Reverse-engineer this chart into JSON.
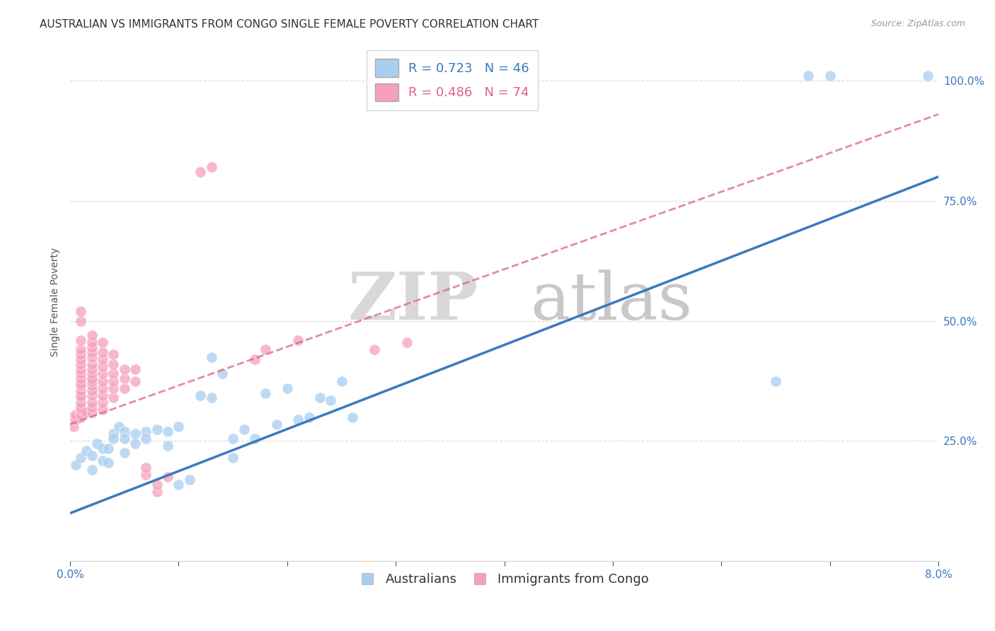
{
  "title": "AUSTRALIAN VS IMMIGRANTS FROM CONGO SINGLE FEMALE POVERTY CORRELATION CHART",
  "source": "Source: ZipAtlas.com",
  "ylabel": "Single Female Poverty",
  "ytick_vals": [
    0.25,
    0.5,
    0.75,
    1.0
  ],
  "ytick_labels": [
    "25.0%",
    "50.0%",
    "75.0%",
    "100.0%"
  ],
  "legend_labels": [
    "Australians",
    "Immigrants from Congo"
  ],
  "watermark_zip": "ZIP",
  "watermark_atlas": "atlas",
  "xlim": [
    0.0,
    0.08
  ],
  "ylim": [
    0.0,
    1.08
  ],
  "aus_color": "#a8cef0",
  "congo_color": "#f5a0bc",
  "aus_line_color": "#3a7abf",
  "congo_line_color": "#e06090",
  "aus_scatter": [
    [
      0.0005,
      0.2
    ],
    [
      0.001,
      0.215
    ],
    [
      0.0015,
      0.23
    ],
    [
      0.002,
      0.22
    ],
    [
      0.002,
      0.19
    ],
    [
      0.0025,
      0.245
    ],
    [
      0.003,
      0.235
    ],
    [
      0.003,
      0.21
    ],
    [
      0.0035,
      0.235
    ],
    [
      0.0035,
      0.205
    ],
    [
      0.004,
      0.265
    ],
    [
      0.004,
      0.255
    ],
    [
      0.0045,
      0.28
    ],
    [
      0.005,
      0.27
    ],
    [
      0.005,
      0.255
    ],
    [
      0.005,
      0.225
    ],
    [
      0.006,
      0.265
    ],
    [
      0.006,
      0.245
    ],
    [
      0.007,
      0.27
    ],
    [
      0.007,
      0.255
    ],
    [
      0.008,
      0.275
    ],
    [
      0.009,
      0.27
    ],
    [
      0.009,
      0.24
    ],
    [
      0.01,
      0.28
    ],
    [
      0.01,
      0.16
    ],
    [
      0.011,
      0.17
    ],
    [
      0.012,
      0.345
    ],
    [
      0.013,
      0.34
    ],
    [
      0.013,
      0.425
    ],
    [
      0.014,
      0.39
    ],
    [
      0.015,
      0.255
    ],
    [
      0.015,
      0.215
    ],
    [
      0.016,
      0.275
    ],
    [
      0.017,
      0.255
    ],
    [
      0.018,
      0.35
    ],
    [
      0.019,
      0.285
    ],
    [
      0.02,
      0.36
    ],
    [
      0.021,
      0.295
    ],
    [
      0.022,
      0.3
    ],
    [
      0.023,
      0.34
    ],
    [
      0.024,
      0.335
    ],
    [
      0.025,
      0.375
    ],
    [
      0.026,
      0.3
    ],
    [
      0.065,
      0.375
    ],
    [
      0.068,
      1.01
    ],
    [
      0.07,
      1.01
    ],
    [
      0.079,
      1.01
    ]
  ],
  "congo_scatter": [
    [
      0.0,
      0.3
    ],
    [
      0.0003,
      0.28
    ],
    [
      0.0005,
      0.295
    ],
    [
      0.0005,
      0.305
    ],
    [
      0.001,
      0.3
    ],
    [
      0.001,
      0.305
    ],
    [
      0.001,
      0.315
    ],
    [
      0.001,
      0.32
    ],
    [
      0.001,
      0.33
    ],
    [
      0.001,
      0.34
    ],
    [
      0.001,
      0.345
    ],
    [
      0.001,
      0.355
    ],
    [
      0.001,
      0.365
    ],
    [
      0.001,
      0.37
    ],
    [
      0.001,
      0.38
    ],
    [
      0.001,
      0.39
    ],
    [
      0.001,
      0.4
    ],
    [
      0.001,
      0.41
    ],
    [
      0.001,
      0.42
    ],
    [
      0.001,
      0.43
    ],
    [
      0.001,
      0.44
    ],
    [
      0.001,
      0.46
    ],
    [
      0.001,
      0.5
    ],
    [
      0.001,
      0.52
    ],
    [
      0.0015,
      0.31
    ],
    [
      0.002,
      0.31
    ],
    [
      0.002,
      0.32
    ],
    [
      0.002,
      0.33
    ],
    [
      0.002,
      0.345
    ],
    [
      0.002,
      0.355
    ],
    [
      0.002,
      0.365
    ],
    [
      0.002,
      0.375
    ],
    [
      0.002,
      0.38
    ],
    [
      0.002,
      0.39
    ],
    [
      0.002,
      0.4
    ],
    [
      0.002,
      0.41
    ],
    [
      0.002,
      0.425
    ],
    [
      0.002,
      0.435
    ],
    [
      0.002,
      0.445
    ],
    [
      0.002,
      0.455
    ],
    [
      0.002,
      0.47
    ],
    [
      0.003,
      0.315
    ],
    [
      0.003,
      0.33
    ],
    [
      0.003,
      0.345
    ],
    [
      0.003,
      0.36
    ],
    [
      0.003,
      0.375
    ],
    [
      0.003,
      0.39
    ],
    [
      0.003,
      0.405
    ],
    [
      0.003,
      0.42
    ],
    [
      0.003,
      0.435
    ],
    [
      0.003,
      0.455
    ],
    [
      0.004,
      0.34
    ],
    [
      0.004,
      0.36
    ],
    [
      0.004,
      0.375
    ],
    [
      0.004,
      0.39
    ],
    [
      0.004,
      0.41
    ],
    [
      0.004,
      0.43
    ],
    [
      0.005,
      0.36
    ],
    [
      0.005,
      0.38
    ],
    [
      0.005,
      0.4
    ],
    [
      0.006,
      0.375
    ],
    [
      0.006,
      0.4
    ],
    [
      0.007,
      0.18
    ],
    [
      0.007,
      0.195
    ],
    [
      0.008,
      0.145
    ],
    [
      0.008,
      0.16
    ],
    [
      0.009,
      0.175
    ],
    [
      0.012,
      0.81
    ],
    [
      0.013,
      0.82
    ],
    [
      0.017,
      0.42
    ],
    [
      0.018,
      0.44
    ],
    [
      0.021,
      0.46
    ],
    [
      0.028,
      0.44
    ],
    [
      0.031,
      0.455
    ]
  ],
  "aus_line": {
    "x0": 0.0,
    "y0": 0.1,
    "x1": 0.08,
    "y1": 0.8
  },
  "congo_line": {
    "x0": 0.0,
    "y0": 0.285,
    "x1": 0.08,
    "y1": 0.93
  },
  "grid_color": "#d8d8d8",
  "background_color": "#ffffff",
  "title_fontsize": 11,
  "axis_label_fontsize": 10,
  "tick_fontsize": 11,
  "legend_fontsize": 13
}
